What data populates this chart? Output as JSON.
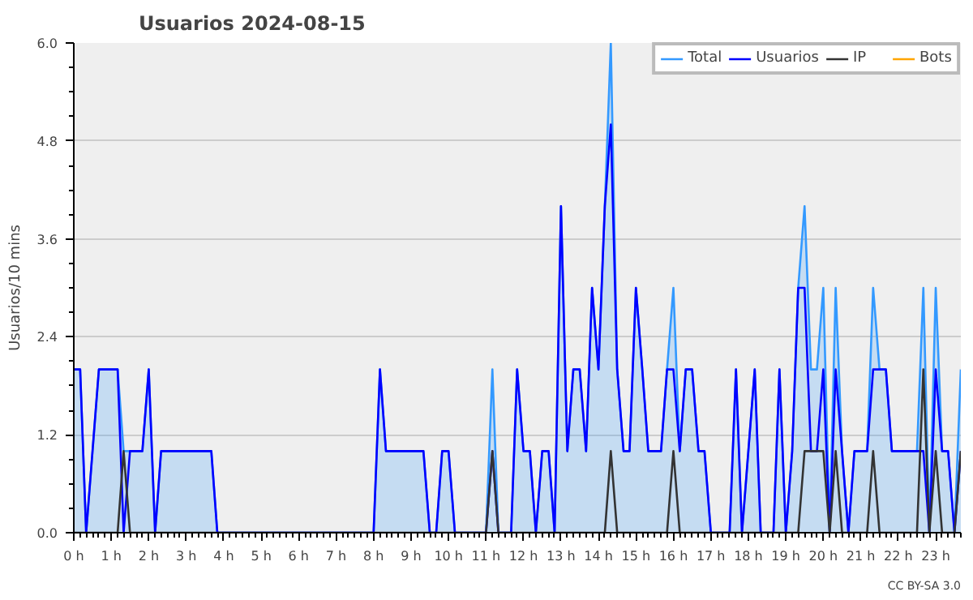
{
  "chart_data": {
    "type": "line",
    "title": "Usuarios  2024-08-15",
    "ylabel": "Usuarios/10 mins",
    "x": [
      0,
      0.17,
      0.33,
      0.5,
      0.67,
      0.83,
      1,
      1.17,
      1.33,
      1.5,
      1.67,
      1.83,
      2,
      2.17,
      2.33,
      2.5,
      2.67,
      2.83,
      3,
      3.17,
      3.33,
      3.5,
      3.67,
      3.83,
      4,
      4.17,
      4.33,
      4.5,
      4.67,
      4.83,
      5,
      5.17,
      5.33,
      5.5,
      5.67,
      5.83,
      6,
      6.17,
      6.33,
      6.5,
      6.67,
      6.83,
      7,
      7.17,
      7.33,
      7.5,
      7.67,
      7.83,
      8,
      8.17,
      8.33,
      8.5,
      8.67,
      8.83,
      9,
      9.17,
      9.33,
      9.5,
      9.67,
      9.83,
      10,
      10.17,
      10.33,
      10.5,
      10.67,
      10.83,
      11,
      11.17,
      11.33,
      11.5,
      11.67,
      11.83,
      12,
      12.17,
      12.33,
      12.5,
      12.67,
      12.83,
      13,
      13.17,
      13.33,
      13.5,
      13.67,
      13.83,
      14,
      14.17,
      14.33,
      14.5,
      14.67,
      14.83,
      15,
      15.17,
      15.33,
      15.5,
      15.67,
      15.83,
      16,
      16.17,
      16.33,
      16.5,
      16.67,
      16.83,
      17,
      17.17,
      17.33,
      17.5,
      17.67,
      17.83,
      18,
      18.17,
      18.33,
      18.5,
      18.67,
      18.83,
      19,
      19.17,
      19.33,
      19.5,
      19.67,
      19.83,
      20,
      20.17,
      20.33,
      20.5,
      20.67,
      20.83,
      21,
      21.17,
      21.33,
      21.5,
      21.67,
      21.83,
      22,
      22.17,
      22.33,
      22.5,
      22.67,
      22.83,
      23,
      23.17,
      23.33,
      23.5,
      23.67
    ],
    "series": [
      {
        "name": "Total",
        "type": "area",
        "color": "#3399ff",
        "values": [
          2,
          2,
          0,
          1,
          2,
          2,
          2,
          2,
          1,
          1,
          1,
          1,
          2,
          0,
          1,
          1,
          1,
          1,
          1,
          1,
          1,
          1,
          1,
          0,
          0,
          0,
          0,
          0,
          0,
          0,
          0,
          0,
          0,
          0,
          0,
          0,
          0,
          0,
          0,
          0,
          0,
          0,
          0,
          0,
          0,
          0,
          0,
          0,
          0,
          2,
          1,
          1,
          1,
          1,
          1,
          1,
          1,
          0,
          0,
          1,
          1,
          0,
          0,
          0,
          0,
          0,
          0,
          2,
          0,
          0,
          0,
          2,
          1,
          1,
          0,
          1,
          1,
          0,
          4,
          1,
          2,
          2,
          1,
          3,
          2,
          4,
          6,
          2,
          1,
          1,
          3,
          2,
          1,
          1,
          1,
          2,
          3,
          1,
          2,
          2,
          1,
          1,
          0,
          0,
          0,
          0,
          2,
          0,
          1,
          2,
          0,
          0,
          0,
          2,
          0,
          1,
          3,
          4,
          2,
          2,
          3,
          0,
          3,
          1,
          0,
          1,
          1,
          1,
          3,
          2,
          2,
          1,
          1,
          1,
          1,
          1,
          3,
          0,
          3,
          1,
          1,
          0,
          2
        ]
      },
      {
        "name": "Usuarios",
        "color": "#0000ff",
        "values": [
          2,
          2,
          0,
          1,
          2,
          2,
          2,
          2,
          0,
          1,
          1,
          1,
          2,
          0,
          1,
          1,
          1,
          1,
          1,
          1,
          1,
          1,
          1,
          0,
          0,
          0,
          0,
          0,
          0,
          0,
          0,
          0,
          0,
          0,
          0,
          0,
          0,
          0,
          0,
          0,
          0,
          0,
          0,
          0,
          0,
          0,
          0,
          0,
          0,
          2,
          1,
          1,
          1,
          1,
          1,
          1,
          1,
          0,
          0,
          1,
          1,
          0,
          0,
          0,
          0,
          0,
          0,
          1,
          0,
          0,
          0,
          2,
          1,
          1,
          0,
          1,
          1,
          0,
          4,
          1,
          2,
          2,
          1,
          3,
          2,
          4,
          5,
          2,
          1,
          1,
          3,
          2,
          1,
          1,
          1,
          2,
          2,
          1,
          2,
          2,
          1,
          1,
          0,
          0,
          0,
          0,
          2,
          0,
          1,
          2,
          0,
          0,
          0,
          2,
          0,
          1,
          3,
          3,
          1,
          1,
          2,
          0,
          2,
          1,
          0,
          1,
          1,
          1,
          2,
          2,
          2,
          1,
          1,
          1,
          1,
          1,
          1,
          0,
          2,
          1,
          1,
          0,
          1
        ]
      },
      {
        "name": "IP",
        "color": "#333333",
        "values": [
          0,
          0,
          0,
          0,
          0,
          0,
          0,
          0,
          1,
          0,
          0,
          0,
          0,
          0,
          0,
          0,
          0,
          0,
          0,
          0,
          0,
          0,
          0,
          0,
          0,
          0,
          0,
          0,
          0,
          0,
          0,
          0,
          0,
          0,
          0,
          0,
          0,
          0,
          0,
          0,
          0,
          0,
          0,
          0,
          0,
          0,
          0,
          0,
          0,
          0,
          0,
          0,
          0,
          0,
          0,
          0,
          0,
          0,
          0,
          0,
          0,
          0,
          0,
          0,
          0,
          0,
          0,
          1,
          0,
          0,
          0,
          0,
          0,
          0,
          0,
          0,
          0,
          0,
          0,
          0,
          0,
          0,
          0,
          0,
          0,
          0,
          1,
          0,
          0,
          0,
          0,
          0,
          0,
          0,
          0,
          0,
          1,
          0,
          0,
          0,
          0,
          0,
          0,
          0,
          0,
          0,
          0,
          0,
          0,
          0,
          0,
          0,
          0,
          0,
          0,
          0,
          0,
          1,
          1,
          1,
          1,
          0,
          1,
          0,
          0,
          0,
          0,
          0,
          1,
          0,
          0,
          0,
          0,
          0,
          0,
          0,
          2,
          0,
          1,
          0,
          0,
          0,
          1
        ]
      },
      {
        "name": "Bots",
        "color": "#ffa500",
        "values": [
          null,
          null,
          null,
          null,
          null,
          null,
          null,
          null,
          null,
          null,
          null,
          null,
          null,
          null,
          null,
          null,
          null,
          null,
          null,
          null,
          null,
          null,
          null,
          null,
          null,
          null,
          null,
          null,
          null,
          null,
          null,
          null,
          null,
          null,
          null,
          null,
          null,
          null,
          null,
          null,
          null,
          null,
          null,
          null,
          null,
          null,
          null,
          null,
          null,
          null,
          null,
          null,
          null,
          null,
          null,
          null,
          null,
          null,
          null,
          null,
          null,
          null,
          null,
          null,
          null,
          null,
          null,
          null,
          null,
          null,
          null,
          null,
          null,
          null,
          null,
          null,
          null,
          null,
          null,
          null,
          null,
          null,
          null,
          null,
          null,
          null,
          null,
          null,
          null,
          null,
          null,
          null,
          null,
          null,
          null,
          null,
          null,
          null,
          null,
          null,
          null,
          null,
          null,
          null,
          null,
          null,
          null,
          null,
          null,
          null,
          null,
          null,
          null,
          null,
          null,
          null,
          null,
          null,
          null,
          null,
          null,
          null,
          null,
          null,
          null,
          null,
          null,
          null,
          null,
          null,
          null,
          null,
          null,
          null,
          null,
          null,
          null,
          null,
          null,
          null,
          null,
          null,
          null
        ]
      }
    ],
    "xlim": [
      0,
      23.67
    ],
    "ylim": [
      0,
      6
    ],
    "xticks": [
      {
        "value": 0,
        "label": "0 h"
      },
      {
        "value": 1,
        "label": "1 h"
      },
      {
        "value": 2,
        "label": "2 h"
      },
      {
        "value": 3,
        "label": "3 h"
      },
      {
        "value": 4,
        "label": "4 h"
      },
      {
        "value": 5,
        "label": "5 h"
      },
      {
        "value": 6,
        "label": "6 h"
      },
      {
        "value": 7,
        "label": "7 h"
      },
      {
        "value": 8,
        "label": "8 h"
      },
      {
        "value": 9,
        "label": "9 h"
      },
      {
        "value": 10,
        "label": "10 h"
      },
      {
        "value": 11,
        "label": "11 h"
      },
      {
        "value": 12,
        "label": "12 h"
      },
      {
        "value": 13,
        "label": "13 h"
      },
      {
        "value": 14,
        "label": "14 h"
      },
      {
        "value": 15,
        "label": "15 h"
      },
      {
        "value": 16,
        "label": "16 h"
      },
      {
        "value": 17,
        "label": "17 h"
      },
      {
        "value": 18,
        "label": "18 h"
      },
      {
        "value": 19,
        "label": "19 h"
      },
      {
        "value": 20,
        "label": "20 h"
      },
      {
        "value": 21,
        "label": "21 h"
      },
      {
        "value": 22,
        "label": "22 h"
      },
      {
        "value": 23,
        "label": "23 h"
      }
    ],
    "yticks": [
      {
        "value": 0,
        "label": "0.0"
      },
      {
        "value": 1.2,
        "label": "1.2"
      },
      {
        "value": 2.4,
        "label": "2.4"
      },
      {
        "value": 3.6,
        "label": "3.6"
      },
      {
        "value": 4.8,
        "label": "4.8"
      },
      {
        "value": 6,
        "label": "6.0"
      }
    ],
    "grid": "y",
    "legend": "top right",
    "marker": "none",
    "line_style": "solid",
    "annotations": [
      "CC BY-SA 3.0"
    ]
  }
}
